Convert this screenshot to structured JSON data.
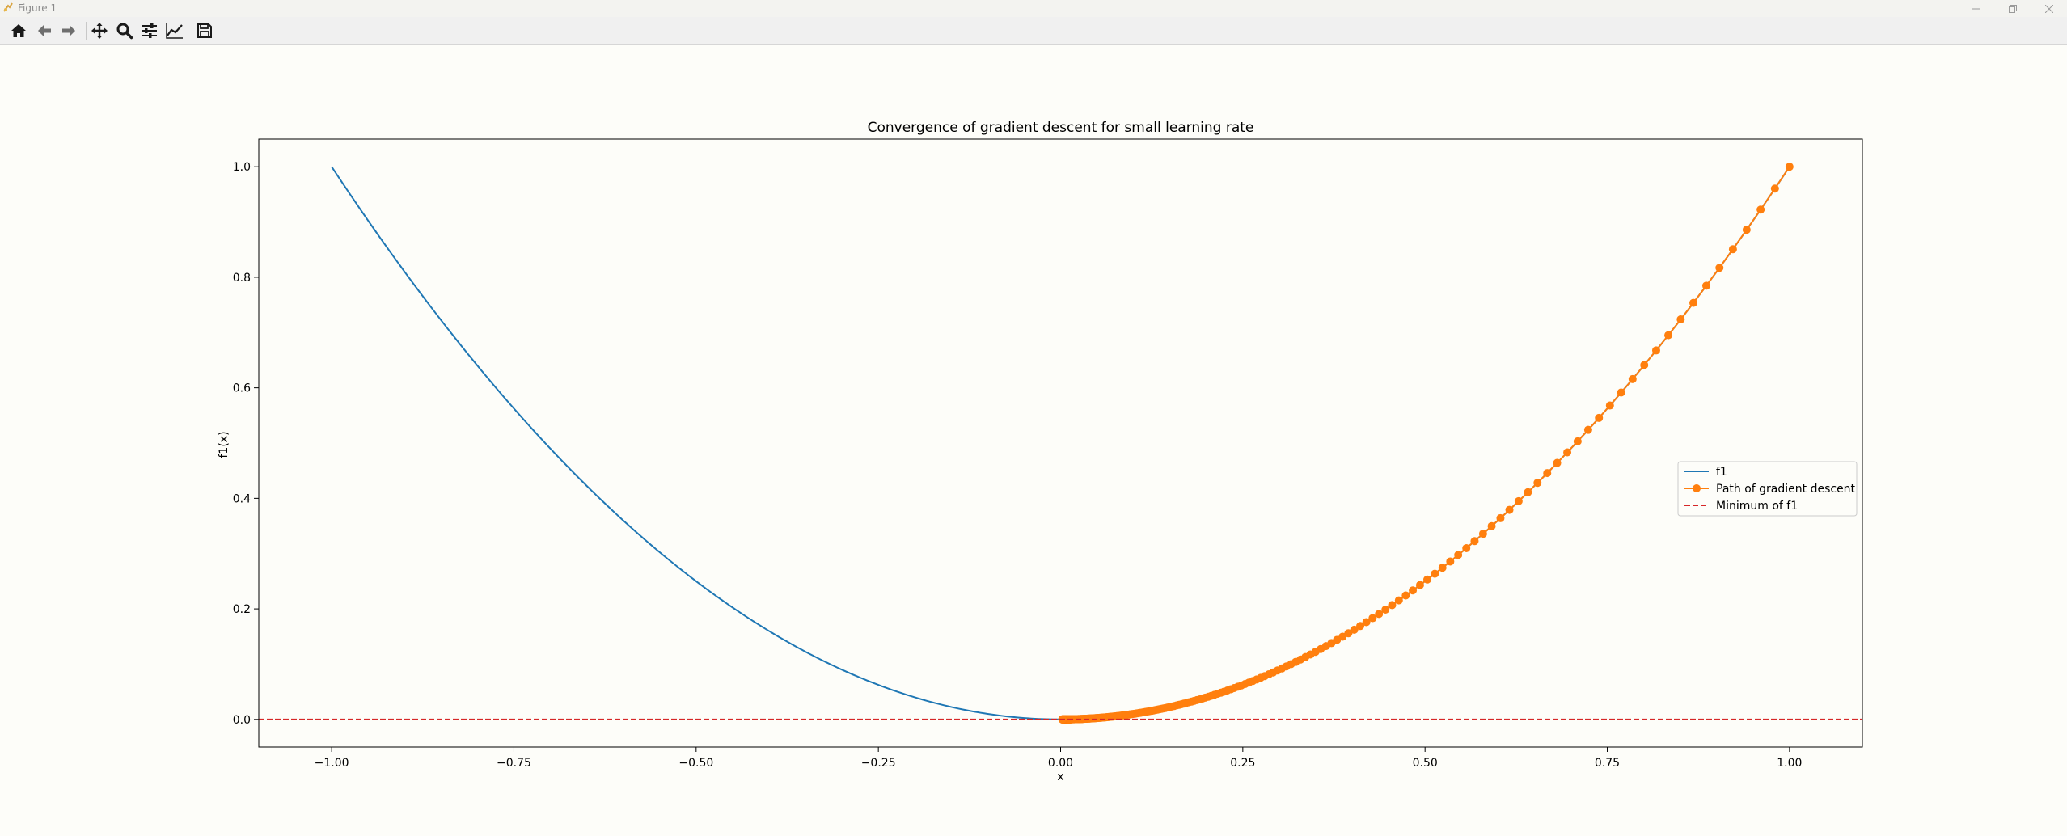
{
  "window": {
    "title": "Figure 1"
  },
  "toolbar": {
    "buttons": [
      {
        "name": "home-icon",
        "label": "Home"
      },
      {
        "name": "back-icon",
        "label": "Back"
      },
      {
        "name": "forward-icon",
        "label": "Forward"
      },
      {
        "name": "pan-icon",
        "label": "Pan"
      },
      {
        "name": "zoom-icon",
        "label": "Zoom"
      },
      {
        "name": "configure-subplots-icon",
        "label": "Configure subplots"
      },
      {
        "name": "edit-axis-icon",
        "label": "Edit axis"
      },
      {
        "name": "save-icon",
        "label": "Save"
      }
    ]
  },
  "colors": {
    "f1_line": "#1f77b4",
    "path_line": "#ff7f0e",
    "minimum_line": "#d62728"
  },
  "chart_data": {
    "type": "line",
    "title": "Convergence of gradient descent for small learning rate",
    "xlabel": "x",
    "ylabel": "f1(x)",
    "xlim": [
      -1.1,
      1.1
    ],
    "ylim": [
      -0.05,
      1.05
    ],
    "xticks": [
      -1.0,
      -0.75,
      -0.5,
      -0.25,
      0.0,
      0.25,
      0.5,
      0.75,
      1.0
    ],
    "xtick_labels": [
      "−1.00",
      "−0.75",
      "−0.50",
      "−0.25",
      "0.00",
      "0.25",
      "0.50",
      "0.75",
      "1.00"
    ],
    "yticks": [
      0.0,
      0.2,
      0.4,
      0.6,
      0.8,
      1.0
    ],
    "ytick_labels": [
      "0.0",
      "0.2",
      "0.4",
      "0.6",
      "0.8",
      "1.0"
    ],
    "grid": false,
    "legend_position": "right",
    "series": [
      {
        "name": "f1",
        "kind": "function",
        "function": "x^2",
        "x_range": [
          -1.0,
          1.0
        ],
        "style": "solid"
      },
      {
        "name": "Path of gradient descent",
        "kind": "points",
        "function": "x^2",
        "x_start": 1.0,
        "step_factor": 0.98,
        "n_points": 300,
        "style": "solid-with-markers"
      },
      {
        "name": "Minimum of f1",
        "kind": "hline",
        "y": 0.0,
        "style": "dashed"
      }
    ]
  }
}
